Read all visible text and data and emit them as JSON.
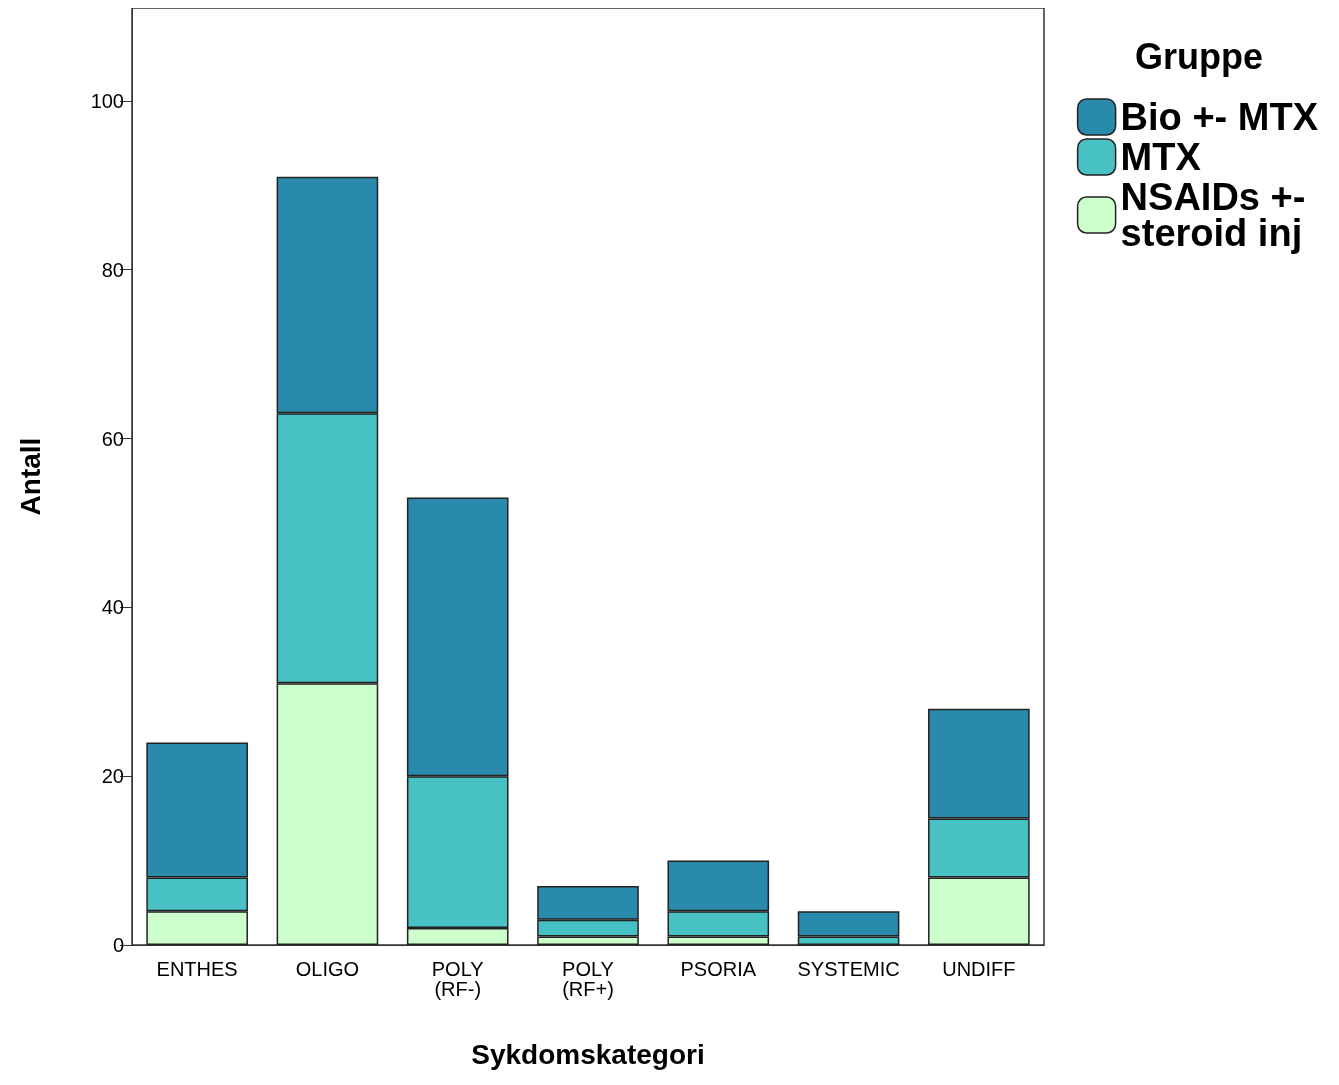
{
  "chart_data": {
    "type": "bar",
    "stacked": true,
    "xlabel": "Sykdomskategori",
    "ylabel": "Antall",
    "legend_title": "Gruppe",
    "legend": "top right",
    "grid": false,
    "categories": [
      "ENTHES",
      "OLIGO",
      "POLY\n(RF-)",
      "POLY\n(RF+)",
      "PSORIA",
      "SYSTEMIC",
      "UNDIFF"
    ],
    "ylim": [
      0,
      111
    ],
    "yticks": [
      0,
      20,
      40,
      60,
      80,
      100
    ],
    "series": [
      {
        "name": "NSAIDs +-\nsteroid inj",
        "color": "#ccffcc",
        "values": [
          4,
          31,
          2,
          1,
          1,
          0,
          8
        ]
      },
      {
        "name": "MTX",
        "color": "#48c1c4",
        "values": [
          4,
          32,
          18,
          2,
          3,
          1,
          7
        ]
      },
      {
        "name": "Bio +- MTX",
        "color": "#2a8aab",
        "values": [
          16,
          28,
          33,
          4,
          6,
          3,
          13
        ]
      }
    ]
  }
}
